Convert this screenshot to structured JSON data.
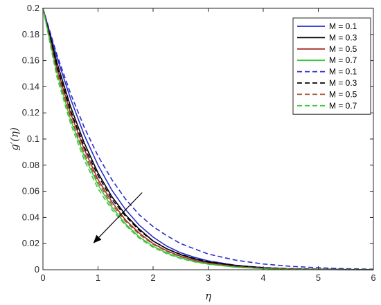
{
  "chart_data": {
    "type": "line",
    "xlabel": "η",
    "ylabel": "g′(η)",
    "xlim": [
      0,
      6
    ],
    "ylim": [
      0,
      0.2
    ],
    "xticks": [
      "0",
      "1",
      "2",
      "3",
      "4",
      "5",
      "6"
    ],
    "yticks": [
      "0",
      "0.02",
      "0.04",
      "0.06",
      "0.08",
      "0.1",
      "0.12",
      "0.14",
      "0.16",
      "0.18",
      "0.2"
    ],
    "grid": false,
    "legend_position": "top-right",
    "annotation": "arrow indicating increasing M",
    "x": [
      0,
      0.25,
      0.5,
      0.75,
      1,
      1.25,
      1.5,
      1.75,
      2,
      2.25,
      2.5,
      2.75,
      3,
      3.5,
      4,
      4.5,
      5,
      5.5,
      6
    ],
    "series": [
      {
        "name": "M = 0.1",
        "style": "solid",
        "color": "#2a2ad4",
        "values": [
          0.2,
          0.163,
          0.131,
          0.103,
          0.08,
          0.061,
          0.046,
          0.034,
          0.025,
          0.018,
          0.013,
          0.0095,
          0.0068,
          0.0034,
          0.0016,
          0.0007,
          0.0003,
          0.0001,
          0
        ]
      },
      {
        "name": "M = 0.3",
        "style": "solid",
        "color": "#000000",
        "values": [
          0.2,
          0.159,
          0.125,
          0.097,
          0.074,
          0.056,
          0.042,
          0.031,
          0.022,
          0.016,
          0.0115,
          0.0082,
          0.0058,
          0.0028,
          0.0013,
          0.0006,
          0.0002,
          0.0001,
          0
        ]
      },
      {
        "name": "M = 0.5",
        "style": "solid",
        "color": "#a52a2a",
        "values": [
          0.2,
          0.155,
          0.12,
          0.092,
          0.069,
          0.052,
          0.038,
          0.028,
          0.02,
          0.0145,
          0.0103,
          0.0072,
          0.005,
          0.0024,
          0.0011,
          0.0005,
          0.0002,
          0.0001,
          0
        ]
      },
      {
        "name": "M = 0.7",
        "style": "solid",
        "color": "#3cc83c",
        "values": [
          0.2,
          0.151,
          0.115,
          0.087,
          0.065,
          0.048,
          0.035,
          0.025,
          0.018,
          0.0128,
          0.009,
          0.0063,
          0.0044,
          0.002,
          0.0009,
          0.0004,
          0.0002,
          0.0001,
          0
        ]
      },
      {
        "name": "M = 0.1",
        "style": "dashed",
        "color": "#2a2ad4",
        "values": [
          0.2,
          0.165,
          0.135,
          0.109,
          0.087,
          0.069,
          0.054,
          0.042,
          0.033,
          0.026,
          0.02,
          0.016,
          0.012,
          0.0073,
          0.0044,
          0.0026,
          0.0015,
          0.0008,
          0.0004
        ]
      },
      {
        "name": "M = 0.3",
        "style": "dashed",
        "color": "#000000",
        "values": [
          0.2,
          0.156,
          0.122,
          0.094,
          0.072,
          0.054,
          0.041,
          0.03,
          0.022,
          0.016,
          0.0118,
          0.0086,
          0.0062,
          0.0032,
          0.0016,
          0.0008,
          0.0004,
          0.0002,
          0
        ]
      },
      {
        "name": "M = 0.5",
        "style": "dashed",
        "color": "#a0522d",
        "values": [
          0.2,
          0.152,
          0.117,
          0.089,
          0.067,
          0.05,
          0.037,
          0.027,
          0.0195,
          0.014,
          0.01,
          0.007,
          0.005,
          0.0024,
          0.0011,
          0.0005,
          0.0002,
          0.0001,
          0
        ]
      },
      {
        "name": "M = 0.7",
        "style": "dashed",
        "color": "#3cc83c",
        "values": [
          0.2,
          0.148,
          0.112,
          0.084,
          0.062,
          0.046,
          0.034,
          0.024,
          0.0172,
          0.0122,
          0.0086,
          0.006,
          0.0042,
          0.0019,
          0.0008,
          0.0003,
          0.0001,
          0,
          0
        ]
      }
    ]
  }
}
